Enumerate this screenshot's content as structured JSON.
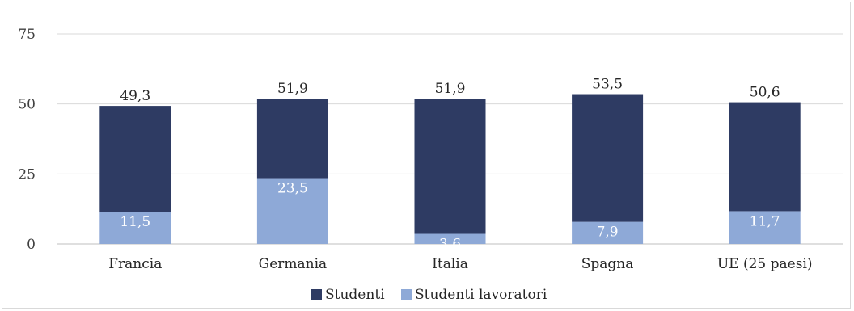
{
  "chart_data": {
    "type": "bar",
    "stacked": true,
    "categories": [
      "Francia",
      "Germania",
      "Italia",
      "Spagna",
      "UE (25 paesi)"
    ],
    "series": [
      {
        "name": "Studenti lavoratori",
        "values": [
          11.5,
          23.5,
          3.6,
          7.9,
          11.7
        ],
        "labels": [
          "11,5",
          "23,5",
          "3,6",
          "7,9",
          "11,7"
        ],
        "color": "#8ea9d7"
      },
      {
        "name": "Studenti",
        "values": [
          37.8,
          28.4,
          48.3,
          45.6,
          38.9
        ],
        "color": "#2e3b63"
      }
    ],
    "totals": [
      49.3,
      51.9,
      51.9,
      53.5,
      50.6
    ],
    "total_labels": [
      "49,3",
      "51,9",
      "51,9",
      "53,5",
      "50,6"
    ],
    "ylim": [
      0,
      75
    ],
    "yticks": [
      0,
      25,
      50,
      75
    ],
    "grid": true,
    "legend_position": "bottom",
    "legend": [
      "Studenti",
      "Studenti lavoratori"
    ],
    "title": "",
    "xlabel": "",
    "ylabel": ""
  }
}
